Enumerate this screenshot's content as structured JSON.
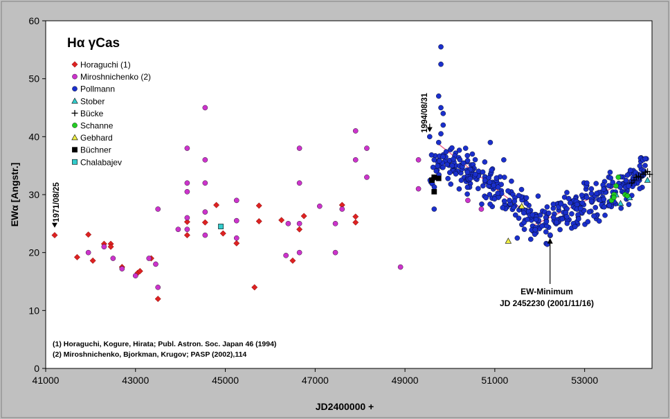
{
  "chart_data": {
    "type": "scatter",
    "title": "Hα γCas",
    "xlabel": "JD2400000 +",
    "ylabel": "EWα [Angstr.]",
    "xlim": [
      41000,
      54500
    ],
    "ylim": [
      0,
      60
    ],
    "xticks": [
      41000,
      43000,
      45000,
      47000,
      49000,
      51000,
      53000
    ],
    "yticks": [
      0,
      10,
      20,
      30,
      40,
      50,
      60
    ],
    "grid": false,
    "legend_position": "top-left",
    "colors": {
      "horaguchi": "#dd2222",
      "miroshnichenko": "#cc33cc",
      "pollmann": "#1a2fcc",
      "stober": "#33cccc",
      "bucke": "#000000",
      "schanne": "#22cc22",
      "gebhard": "#eeee44",
      "buchner": "#000000",
      "chalabajev": "#33cccc",
      "trendline": "#e8608a"
    },
    "series": [
      {
        "name": "Horaguchi (1)",
        "marker": "diamond",
        "color_key": "horaguchi",
        "points": [
          [
            41200,
            23
          ],
          [
            41700,
            19.2
          ],
          [
            41950,
            23.1
          ],
          [
            42050,
            18.6
          ],
          [
            42300,
            21.5
          ],
          [
            42450,
            21.5
          ],
          [
            42450,
            21
          ],
          [
            42700,
            17.5
          ],
          [
            43050,
            16.5
          ],
          [
            43100,
            16.8
          ],
          [
            43350,
            19
          ],
          [
            43500,
            12
          ],
          [
            44150,
            23
          ],
          [
            44150,
            25.3
          ],
          [
            44550,
            25.2
          ],
          [
            44800,
            28.2
          ],
          [
            44950,
            23.3
          ],
          [
            45250,
            21.6
          ],
          [
            45650,
            14
          ],
          [
            45750,
            25.4
          ],
          [
            45750,
            28.1
          ],
          [
            46250,
            25.6
          ],
          [
            46500,
            18.6
          ],
          [
            46650,
            24
          ],
          [
            46750,
            26.3
          ],
          [
            47600,
            28.2
          ],
          [
            47900,
            26.2
          ],
          [
            47900,
            25.2
          ]
        ]
      },
      {
        "name": "Miroshnichenko (2)",
        "marker": "circle",
        "color_key": "miroshnichenko",
        "points": [
          [
            41950,
            20
          ],
          [
            42300,
            21
          ],
          [
            42500,
            19
          ],
          [
            42700,
            17.2
          ],
          [
            43000,
            16
          ],
          [
            43300,
            19
          ],
          [
            43450,
            18
          ],
          [
            43500,
            14
          ],
          [
            43500,
            27.5
          ],
          [
            43950,
            24
          ],
          [
            44150,
            38
          ],
          [
            44150,
            32
          ],
          [
            44150,
            30.5
          ],
          [
            44150,
            26
          ],
          [
            44150,
            24
          ],
          [
            44550,
            45
          ],
          [
            44550,
            36
          ],
          [
            44550,
            32
          ],
          [
            44550,
            27
          ],
          [
            44550,
            23
          ],
          [
            45250,
            29
          ],
          [
            45250,
            25.5
          ],
          [
            45250,
            22.5
          ],
          [
            46350,
            19.5
          ],
          [
            46400,
            25
          ],
          [
            46650,
            38
          ],
          [
            46650,
            32
          ],
          [
            46650,
            25
          ],
          [
            46650,
            20
          ],
          [
            47100,
            28
          ],
          [
            47450,
            25
          ],
          [
            47450,
            20
          ],
          [
            47600,
            27.5
          ],
          [
            47900,
            41
          ],
          [
            47900,
            36
          ],
          [
            48150,
            38
          ],
          [
            48150,
            33
          ],
          [
            48900,
            17.5
          ],
          [
            49300,
            36
          ],
          [
            49300,
            31
          ],
          [
            50400,
            29
          ],
          [
            50700,
            27.5
          ]
        ]
      },
      {
        "name": "Pollmann",
        "marker": "circle",
        "color_key": "pollmann",
        "generated": true,
        "anchors": [
          [
            49550,
            34
          ],
          [
            49900,
            36
          ],
          [
            50400,
            33.5
          ],
          [
            51000,
            31
          ],
          [
            51500,
            28.5
          ],
          [
            51900,
            26
          ],
          [
            52200,
            25.5
          ],
          [
            52600,
            27
          ],
          [
            53000,
            28.5
          ],
          [
            53400,
            29.5
          ],
          [
            53800,
            31
          ],
          [
            54100,
            32.5
          ],
          [
            54400,
            34
          ]
        ],
        "extra_points": [
          [
            49800,
            55.5
          ],
          [
            49800,
            52.5
          ],
          [
            49750,
            47
          ],
          [
            49800,
            45
          ],
          [
            49850,
            44
          ],
          [
            49850,
            42
          ],
          [
            49800,
            40.5
          ],
          [
            49750,
            39
          ],
          [
            49550,
            40
          ],
          [
            49650,
            27.5
          ],
          [
            49650,
            36
          ],
          [
            50050,
            35
          ],
          [
            50350,
            38
          ],
          [
            50500,
            37
          ],
          [
            50900,
            39
          ],
          [
            51200,
            36
          ],
          [
            51800,
            22.3
          ],
          [
            51500,
            22.5
          ],
          [
            52200,
            26.8
          ],
          [
            53050,
            32
          ],
          [
            53150,
            31
          ],
          [
            54300,
            36
          ],
          [
            54350,
            36.2
          ]
        ]
      },
      {
        "name": "Stober",
        "marker": "triangle",
        "color_key": "stober",
        "points": [
          [
            53800,
            28.5
          ],
          [
            53700,
            30
          ],
          [
            54000,
            29.5
          ],
          [
            54400,
            32.5
          ]
        ]
      },
      {
        "name": "Bücke",
        "marker": "plus",
        "color_key": "bucke",
        "points": [
          [
            54050,
            32
          ],
          [
            54100,
            32.5
          ],
          [
            54150,
            33
          ],
          [
            54200,
            33.2
          ],
          [
            54250,
            33
          ],
          [
            54300,
            33.5
          ],
          [
            54350,
            33.8
          ],
          [
            54400,
            34
          ],
          [
            54450,
            33.5
          ]
        ]
      },
      {
        "name": "Schanne",
        "marker": "circle",
        "color_key": "schanne",
        "points": [
          [
            53600,
            29
          ],
          [
            53650,
            30
          ],
          [
            53700,
            31.5
          ],
          [
            53750,
            33
          ],
          [
            53650,
            29.5
          ],
          [
            53900,
            30
          ],
          [
            53950,
            29.8
          ]
        ]
      },
      {
        "name": "Gebhard",
        "marker": "triangle",
        "color_key": "gebhard",
        "points": [
          [
            51300,
            22
          ],
          [
            51600,
            28
          ]
        ]
      },
      {
        "name": "Büchner",
        "marker": "square",
        "color_key": "buchner",
        "points": [
          [
            49600,
            32.5
          ],
          [
            49650,
            30.5
          ],
          [
            49750,
            32.8
          ],
          [
            49650,
            33
          ]
        ]
      },
      {
        "name": "Chalabajev",
        "marker": "square",
        "color_key": "chalabajev",
        "points": [
          [
            44900,
            24.5
          ]
        ]
      }
    ],
    "trendlines": [
      {
        "x": [
          49700,
          52100
        ],
        "y": [
          39,
          24.5
        ]
      },
      {
        "x": [
          51800,
          54400
        ],
        "y": [
          24.5,
          34
        ]
      }
    ],
    "annotations": {
      "date_1971": {
        "text": "1971/08/25",
        "x": 41200,
        "y": 24.3
      },
      "date_1994": {
        "text": "1994/08/31",
        "x": 49550,
        "y": 40.8
      },
      "ew_min_title": {
        "text": "EW-Minimum"
      },
      "ew_min_jd": {
        "text": "JD 2452230 (2001/11/16)"
      },
      "ew_min_point": {
        "x": 52230,
        "y": 22.5
      }
    },
    "references": [
      "(1) Horaguchi, Kogure, Hirata; Publ. Astron. Soc. Japan 46 (1994)",
      "(2) Miroshnichenko, Bjorkman, Krugov; PASP (2002),114"
    ]
  }
}
